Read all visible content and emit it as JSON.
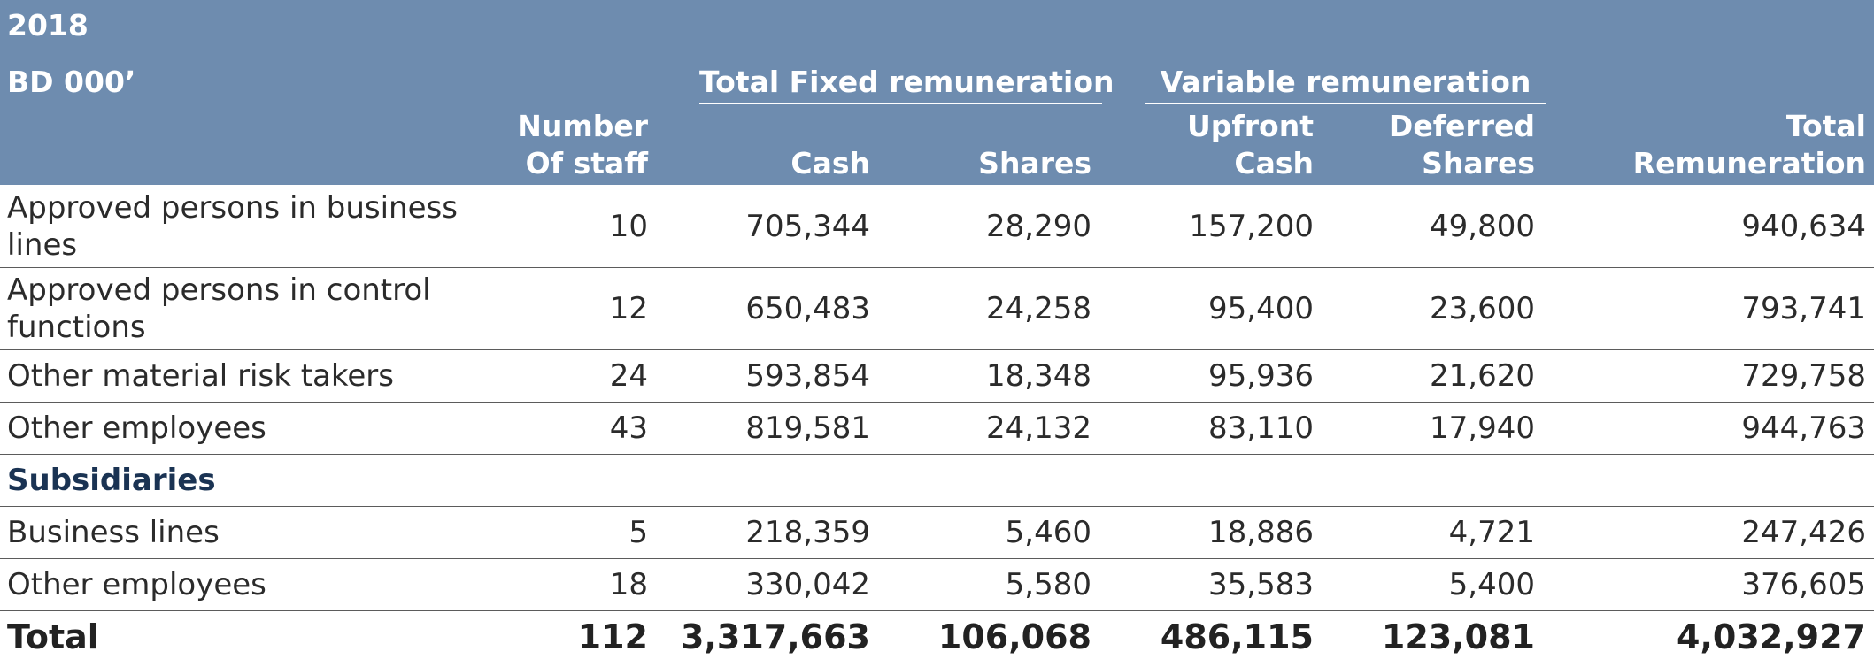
{
  "header": {
    "year": "2018",
    "unit": "BD 000’",
    "groups": {
      "fixed": "Total Fixed remuneration",
      "variable": "Variable remuneration"
    },
    "columns": {
      "staff_line1": "Number",
      "staff_line2": "Of staff",
      "cash": "Cash",
      "shares": "Shares",
      "upfront_line1": "Upfront",
      "upfront_line2": "Cash",
      "deferred_line1": "Deferred",
      "deferred_line2": "Shares",
      "total_line1": "Total",
      "total_line2": "Remuneration"
    }
  },
  "rows": [
    {
      "label": "Approved persons in business lines",
      "staff": "10",
      "cash": "705,344",
      "shares": "28,290",
      "upfront": "157,200",
      "deferred": "49,800",
      "total": "940,634"
    },
    {
      "label": "Approved persons in control functions",
      "staff": "12",
      "cash": "650,483",
      "shares": "24,258",
      "upfront": "95,400",
      "deferred": "23,600",
      "total": "793,741"
    },
    {
      "label": "Other material risk takers",
      "staff": "24",
      "cash": "593,854",
      "shares": "18,348",
      "upfront": "95,936",
      "deferred": "21,620",
      "total": "729,758"
    },
    {
      "label": "Other employees",
      "staff": "43",
      "cash": "819,581",
      "shares": "24,132",
      "upfront": "83,110",
      "deferred": "17,940",
      "total": "944,763"
    },
    {
      "section": "Subsidiaries"
    },
    {
      "label": "Business lines",
      "staff": "5",
      "cash": "218,359",
      "shares": "5,460",
      "upfront": "18,886",
      "deferred": "4,721",
      "total": "247,426"
    },
    {
      "label": "Other employees",
      "staff": "18",
      "cash": "330,042",
      "shares": "5,580",
      "upfront": "35,583",
      "deferred": "5,400",
      "total": "376,605"
    },
    {
      "label": "Total",
      "staff": "112",
      "cash": "3,317,663",
      "shares": "106,068",
      "upfront": "486,115",
      "deferred": "123,081",
      "total": "4,032,927",
      "is_total": true
    }
  ],
  "colors": {
    "header_bg": "#6e8caf",
    "section_text": "#1a3353",
    "rule": "#5b5b5b"
  }
}
